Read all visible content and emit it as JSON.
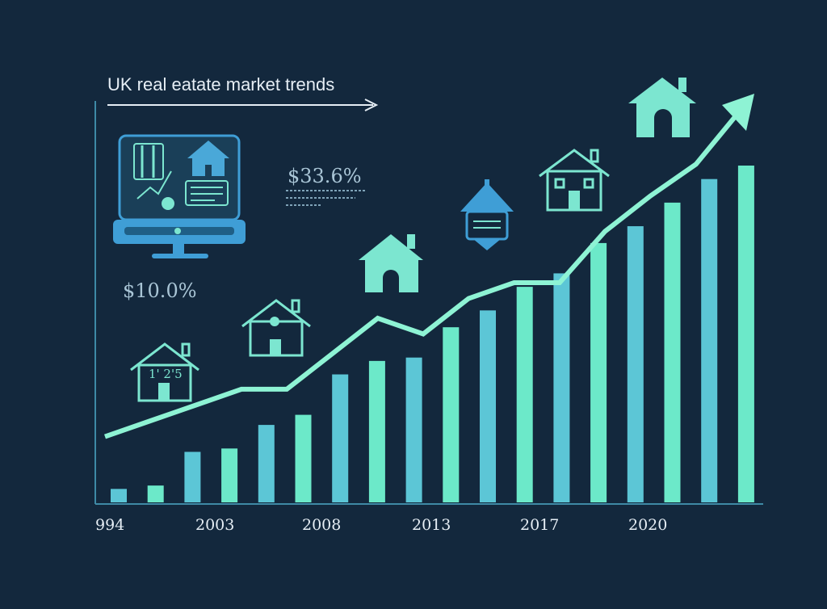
{
  "title": "UK real eatate market trends",
  "annotations": {
    "top": "$33.6%",
    "left": "$10.0%",
    "house_digits": "1' 2'5"
  },
  "colors": {
    "background": "#13283d",
    "bar": "#6ce9c9",
    "bar_alt": "#5cc6d6",
    "trend": "#8ef3d4",
    "axis": "#3e8aa6",
    "icon_teal": "#7ce6d0",
    "icon_blue": "#3f9ed6",
    "text": "#e6eef5"
  },
  "chart_data": {
    "type": "bar",
    "x_tick_labels": [
      "994",
      "2003",
      "2008",
      "2013",
      "2017",
      "2020"
    ],
    "values": [
      4,
      5,
      15,
      16,
      23,
      26,
      38,
      42,
      43,
      52,
      57,
      64,
      68,
      77,
      82,
      89,
      96,
      100
    ],
    "trend_line": [
      5,
      9,
      13,
      17,
      17,
      26,
      35,
      31,
      40,
      44,
      44,
      57,
      66,
      74,
      88
    ],
    "ylim": [
      0,
      110
    ]
  }
}
